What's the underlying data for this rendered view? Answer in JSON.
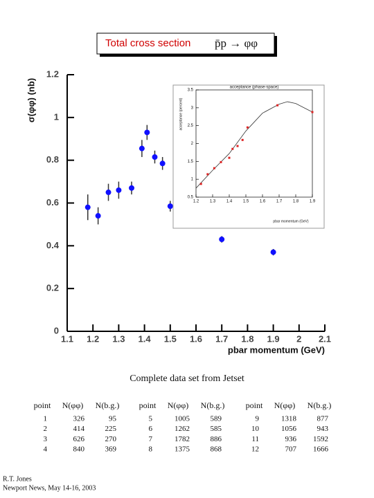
{
  "title": "Total cross section",
  "reaction": "p̄p → φφ",
  "chart_data": [
    {
      "type": "scatter",
      "ylabel": "σ(φφ) (nb)",
      "xlabel": "pbar momentum (GeV)",
      "xlim": [
        1.1,
        2.1
      ],
      "xticks": [
        1.1,
        1.2,
        1.3,
        1.4,
        1.5,
        1.6,
        1.7,
        1.8,
        1.9,
        2,
        2.1
      ],
      "ylim": [
        0,
        1.2
      ],
      "yticks": [
        0,
        0.2,
        0.4,
        0.6,
        0.8,
        1,
        1.2
      ],
      "series": [
        {
          "color": "#1010ff",
          "x": [
            1.18,
            1.22,
            1.26,
            1.3,
            1.35,
            1.39,
            1.41,
            1.44,
            1.47,
            1.5,
            1.7,
            1.9
          ],
          "values": [
            0.58,
            0.54,
            0.65,
            0.66,
            0.67,
            0.855,
            0.93,
            0.815,
            0.785,
            0.585,
            0.43,
            0.37
          ],
          "errors": [
            0.06,
            0.04,
            0.04,
            0.04,
            0.03,
            0.04,
            0.035,
            0.03,
            0.03,
            0.025,
            0.015,
            0.015
          ]
        }
      ]
    },
    {
      "type": "scatter",
      "title": "acceptance (phase-space)",
      "ylabel": "acceptance (percent)",
      "xlabel": "pbar momentum (GeV)",
      "xlim": [
        1.2,
        1.9
      ],
      "xticks": [
        1.2,
        1.3,
        1.4,
        1.5,
        1.6,
        1.7,
        1.8,
        1.9
      ],
      "ylim": [
        0.5,
        3.5
      ],
      "yticks": [
        0.5,
        1,
        1.5,
        2,
        2.5,
        3,
        3.5
      ],
      "series": [
        {
          "color": "#dd2222",
          "x": [
            1.23,
            1.27,
            1.31,
            1.35,
            1.4,
            1.42,
            1.45,
            1.48,
            1.51,
            1.69,
            1.9
          ],
          "values": [
            0.87,
            1.14,
            1.31,
            1.48,
            1.6,
            1.85,
            1.93,
            2.1,
            2.45,
            3.07,
            2.88
          ]
        }
      ],
      "curve": {
        "color": "#333333",
        "x": [
          1.2,
          1.3,
          1.4,
          1.5,
          1.6,
          1.7,
          1.75,
          1.8,
          1.9
        ],
        "values": [
          0.75,
          1.25,
          1.72,
          2.35,
          2.85,
          3.1,
          3.17,
          3.12,
          2.88
        ]
      }
    }
  ],
  "caption": "Complete data set from Jetset",
  "table": {
    "header": [
      "point",
      "N(φφ)",
      "N(b.g.)"
    ],
    "groups": [
      [
        [
          "1",
          "326",
          "95"
        ],
        [
          "2",
          "414",
          "225"
        ],
        [
          "3",
          "626",
          "270"
        ],
        [
          "4",
          "840",
          "369"
        ]
      ],
      [
        [
          "5",
          "1005",
          "589"
        ],
        [
          "6",
          "1262",
          "585"
        ],
        [
          "7",
          "1782",
          "886"
        ],
        [
          "8",
          "1375",
          "868"
        ]
      ],
      [
        [
          "9",
          "1318",
          "877"
        ],
        [
          "10",
          "1056",
          "943"
        ],
        [
          "11",
          "936",
          "1592"
        ],
        [
          "12",
          "707",
          "1666"
        ]
      ]
    ]
  },
  "footer": [
    "R.T. Jones",
    "Newport News, May 14-16, 2003"
  ]
}
